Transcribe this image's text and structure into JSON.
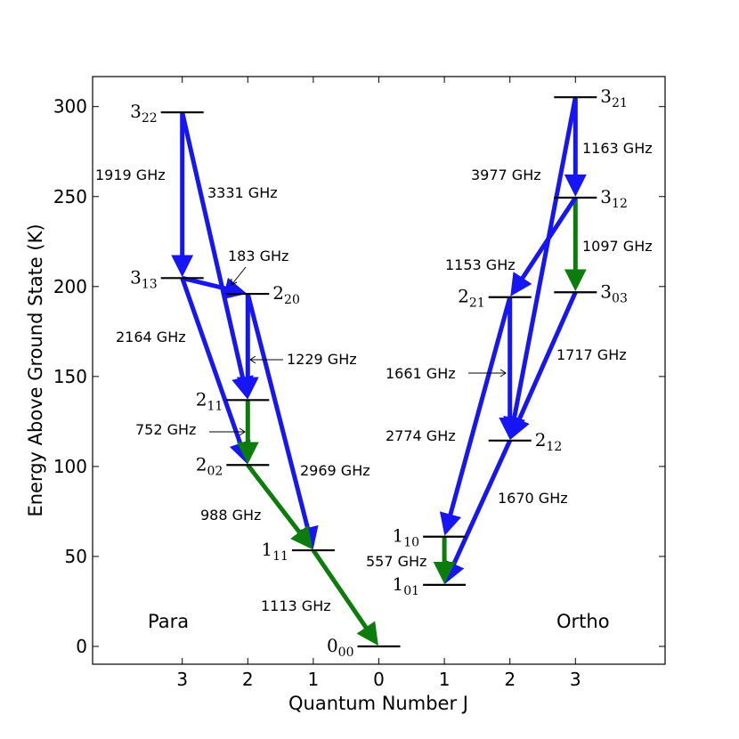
{
  "chart_data": {
    "type": "energy-level-diagram",
    "title": "",
    "xlabel": "Quantum Number J",
    "ylabel": "Energy Above Ground State (K)",
    "ylim": [
      -10,
      305
    ],
    "yticks": [
      0,
      50,
      100,
      150,
      200,
      250,
      300
    ],
    "xticks": [
      {
        "pos": -3,
        "label": "3"
      },
      {
        "pos": -2,
        "label": "2"
      },
      {
        "pos": -1,
        "label": "1"
      },
      {
        "pos": 0,
        "label": "0"
      },
      {
        "pos": 1,
        "label": "1"
      },
      {
        "pos": 2,
        "label": "2"
      },
      {
        "pos": 3,
        "label": "3"
      }
    ],
    "panels": [
      {
        "id": "para",
        "label": "Para"
      },
      {
        "id": "ortho",
        "label": "Ortho"
      }
    ],
    "levels": [
      {
        "id": "000",
        "main": "0",
        "sub": "00",
        "x": 0,
        "energy": 0,
        "label_side": "left"
      },
      {
        "id": "111",
        "main": "1",
        "sub": "11",
        "x": -1,
        "energy": 53.4,
        "label_side": "left"
      },
      {
        "id": "202",
        "main": "2",
        "sub": "02",
        "x": -2,
        "energy": 100.8,
        "label_side": "left"
      },
      {
        "id": "211",
        "main": "2",
        "sub": "11",
        "x": -2,
        "energy": 136.9,
        "label_side": "left"
      },
      {
        "id": "220",
        "main": "2",
        "sub": "20",
        "x": -2,
        "energy": 195.9,
        "label_side": "right"
      },
      {
        "id": "313",
        "main": "3",
        "sub": "13",
        "x": -3,
        "energy": 204.7,
        "label_side": "left"
      },
      {
        "id": "322",
        "main": "3",
        "sub": "22",
        "x": -3,
        "energy": 296.8,
        "label_side": "left"
      },
      {
        "id": "101",
        "main": "1",
        "sub": "01",
        "x": 1,
        "energy": 34.2,
        "label_side": "left"
      },
      {
        "id": "110",
        "main": "1",
        "sub": "10",
        "x": 1,
        "energy": 61.0,
        "label_side": "left"
      },
      {
        "id": "212",
        "main": "2",
        "sub": "12",
        "x": 2,
        "energy": 114.4,
        "label_side": "right"
      },
      {
        "id": "221",
        "main": "2",
        "sub": "21",
        "x": 2,
        "energy": 194.1,
        "label_side": "left"
      },
      {
        "id": "303",
        "main": "3",
        "sub": "03",
        "x": 3,
        "energy": 196.8,
        "label_side": "right"
      },
      {
        "id": "312",
        "main": "3",
        "sub": "12",
        "x": 3,
        "energy": 249.4,
        "label_side": "right"
      },
      {
        "id": "321",
        "main": "3",
        "sub": "21",
        "x": 3,
        "energy": 305.2,
        "label_side": "right"
      }
    ],
    "transitions": [
      {
        "from": "322",
        "to": "313",
        "freq": "1919 GHz",
        "color": "blue"
      },
      {
        "from": "322",
        "to": "211",
        "freq": "3331 GHz",
        "color": "blue"
      },
      {
        "from": "313",
        "to": "202",
        "freq": "2164 GHz",
        "color": "blue"
      },
      {
        "from": "220",
        "to": "211",
        "freq": "1229 GHz",
        "color": "blue"
      },
      {
        "from": "220",
        "to": "111",
        "freq": "2969 GHz",
        "color": "blue"
      },
      {
        "from": "211",
        "to": "202",
        "freq": "752 GHz",
        "color": "green"
      },
      {
        "from": "202",
        "to": "111",
        "freq": "988 GHz",
        "color": "green"
      },
      {
        "from": "111",
        "to": "000",
        "freq": "1113 GHz",
        "color": "green"
      },
      {
        "from": "313",
        "to": "220",
        "freq": "183 GHz",
        "color": "blue"
      },
      {
        "from": "321",
        "to": "312",
        "freq": "1163 GHz",
        "color": "blue"
      },
      {
        "from": "321",
        "to": "212",
        "freq": "3977 GHz",
        "color": "blue"
      },
      {
        "from": "312",
        "to": "303",
        "freq": "1097 GHz",
        "color": "green"
      },
      {
        "from": "312",
        "to": "221",
        "freq": "1153 GHz",
        "color": "blue"
      },
      {
        "from": "303",
        "to": "212",
        "freq": "1717 GHz",
        "color": "blue"
      },
      {
        "from": "221",
        "to": "212",
        "freq": "1661 GHz",
        "color": "blue"
      },
      {
        "from": "221",
        "to": "110",
        "freq": "2774 GHz",
        "color": "blue"
      },
      {
        "from": "212",
        "to": "101",
        "freq": "1670 GHz",
        "color": "blue"
      },
      {
        "from": "110",
        "to": "101",
        "freq": "557 GHz",
        "color": "green"
      }
    ],
    "colors": {
      "blue": "#1515f5",
      "green": "#0c7d0c",
      "level": "#000000"
    }
  }
}
